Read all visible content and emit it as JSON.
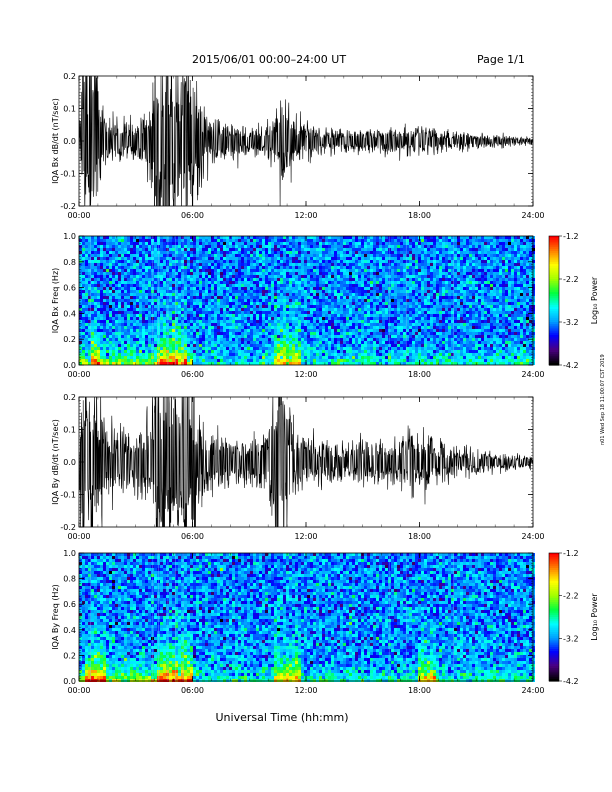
{
  "header": {
    "title": "2015/06/01  00:00–24:00 UT",
    "page": "Page 1/1"
  },
  "xlabel": "Universal Time (hh:mm)",
  "side_note": "n01 Wed Sep 18 11:00:07 CST 2019",
  "colorbar": {
    "label": "Log₁₀ Power",
    "ticks": [
      "-1.2",
      "-2.2",
      "-3.2",
      "-4.2"
    ],
    "range": [
      -4.2,
      -1.2
    ],
    "colors": [
      "#000000",
      "#4b0082",
      "#0000ff",
      "#00a0ff",
      "#00ffff",
      "#00ff40",
      "#a0ff00",
      "#ffff00",
      "#ff8000",
      "#ff0000"
    ]
  },
  "chart_data": [
    {
      "type": "line",
      "panel": "Bx waveform",
      "ylabel": "IQA Bx dB/dt (nT/sec)",
      "ylim": [
        -0.2,
        0.2
      ],
      "yticks": [
        "0.2",
        "0.1",
        "0.0",
        "-0.1",
        "-0.2"
      ],
      "xlim": [
        "00:00",
        "24:00"
      ],
      "xticks": [
        "00:00",
        "06:00",
        "12:00",
        "18:00",
        "24:00"
      ],
      "envelope": {
        "x_hours": [
          0,
          0.2,
          0.5,
          0.8,
          1.0,
          1.5,
          2.0,
          3.0,
          3.8,
          4.1,
          4.4,
          4.8,
          5.0,
          5.3,
          5.6,
          5.9,
          6.2,
          6.7,
          7.5,
          9.0,
          10.0,
          10.4,
          10.7,
          11.0,
          11.5,
          12.0,
          13.0,
          14.0,
          15.0,
          16.0,
          17.0,
          17.8,
          18.3,
          19.0,
          20.0,
          21.0,
          22.0,
          23.0,
          24.0
        ],
        "amplitude": [
          0.02,
          0.2,
          0.2,
          0.2,
          0.12,
          0.05,
          0.04,
          0.04,
          0.08,
          0.2,
          0.2,
          0.2,
          0.2,
          0.12,
          0.2,
          0.2,
          0.12,
          0.05,
          0.04,
          0.03,
          0.035,
          0.06,
          0.1,
          0.08,
          0.05,
          0.035,
          0.025,
          0.025,
          0.025,
          0.025,
          0.028,
          0.03,
          0.028,
          0.022,
          0.02,
          0.015,
          0.012,
          0.01,
          0.008
        ]
      }
    },
    {
      "type": "heatmap",
      "panel": "Bx spectrogram",
      "ylabel": "IQA Bx Freq (Hz)",
      "ylim": [
        0,
        1.0
      ],
      "yticks": [
        "1.0",
        "0.8",
        "0.6",
        "0.4",
        "0.2",
        "0.0"
      ],
      "xlim": [
        "00:00",
        "24:00"
      ],
      "xticks": [
        "00:00",
        "06:00",
        "12:00",
        "18:00",
        "24:00"
      ],
      "zlim": [
        -4.2,
        -1.2
      ]
    },
    {
      "type": "line",
      "panel": "By waveform",
      "ylabel": "IQA By dB/dt (nT/sec)",
      "ylim": [
        -0.2,
        0.2
      ],
      "yticks": [
        "0.2",
        "0.1",
        "0.0",
        "-0.1",
        "-0.2"
      ],
      "xlim": [
        "00:00",
        "24:00"
      ],
      "xticks": [
        "00:00",
        "06:00",
        "12:00",
        "18:00",
        "24:00"
      ],
      "envelope": {
        "x_hours": [
          0,
          0.2,
          0.5,
          0.8,
          1.0,
          1.5,
          2.0,
          3.0,
          3.8,
          4.1,
          4.4,
          4.8,
          5.0,
          5.3,
          5.6,
          5.9,
          6.2,
          6.7,
          7.5,
          9.0,
          10.0,
          10.4,
          10.7,
          11.0,
          11.5,
          12.0,
          13.0,
          14.0,
          15.0,
          16.0,
          17.0,
          17.8,
          18.3,
          19.0,
          20.0,
          21.0,
          22.0,
          23.0,
          24.0
        ],
        "amplitude": [
          0.03,
          0.2,
          0.2,
          0.18,
          0.12,
          0.08,
          0.06,
          0.06,
          0.12,
          0.2,
          0.2,
          0.2,
          0.2,
          0.15,
          0.2,
          0.2,
          0.12,
          0.06,
          0.05,
          0.05,
          0.06,
          0.2,
          0.2,
          0.12,
          0.06,
          0.05,
          0.04,
          0.04,
          0.04,
          0.04,
          0.05,
          0.07,
          0.06,
          0.04,
          0.03,
          0.025,
          0.02,
          0.015,
          0.012
        ]
      }
    },
    {
      "type": "heatmap",
      "panel": "By spectrogram",
      "ylabel": "IQA By Freq (Hz)",
      "ylim": [
        0,
        1.0
      ],
      "yticks": [
        "1.0",
        "0.8",
        "0.6",
        "0.4",
        "0.2",
        "0.0"
      ],
      "xlim": [
        "00:00",
        "24:00"
      ],
      "xticks": [
        "00:00",
        "06:00",
        "12:00",
        "18:00",
        "24:00"
      ],
      "zlim": [
        -4.2,
        -1.2
      ]
    }
  ]
}
